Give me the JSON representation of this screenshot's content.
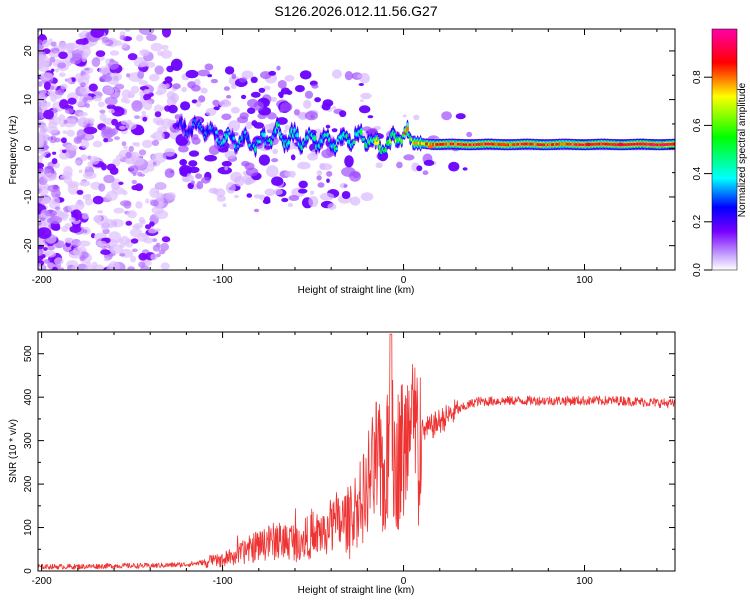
{
  "figure_title": "S126.2026.012.11.56.G27",
  "chart_data": [
    {
      "type": "heatmap",
      "title": "S126.2026.012.11.56.G27",
      "xlabel": "Height of straight line (km)",
      "ylabel": "Frequency (Hz)",
      "xlim": [
        -202,
        150
      ],
      "ylim": [
        -25,
        24.5
      ],
      "xticks": [
        -200,
        -100,
        0,
        100
      ],
      "yticks": [
        20,
        10,
        0,
        -10,
        -20
      ],
      "colorbar": {
        "label": "Normalized spectral amplitude",
        "range": [
          0,
          1
        ],
        "ticks": [
          0.0,
          0.2,
          0.4,
          0.6,
          0.8
        ],
        "colors": [
          "#ffffff",
          "#7700ff",
          "#0000ff",
          "#00ffff",
          "#00ff00",
          "#ffff00",
          "#ff0000",
          "#ff00aa"
        ]
      },
      "ridge": {
        "x": [
          -125,
          -110,
          -100,
          -90,
          -80,
          -70,
          -60,
          -50,
          -40,
          -30,
          -20,
          -15,
          -10,
          -5,
          0,
          5,
          10,
          20,
          40,
          60,
          80,
          100,
          120,
          150
        ],
        "freq": [
          4,
          4,
          2,
          2,
          1,
          3,
          2,
          2,
          1,
          2,
          2,
          1,
          0,
          2,
          3,
          1,
          1,
          0.8,
          0.8,
          0.8,
          0.8,
          0.8,
          0.8,
          0.8
        ],
        "amp": [
          0.2,
          0.25,
          0.3,
          0.3,
          0.32,
          0.35,
          0.35,
          0.33,
          0.35,
          0.35,
          0.4,
          0.45,
          0.5,
          0.45,
          0.5,
          0.55,
          0.6,
          0.65,
          0.65,
          0.65,
          0.65,
          0.68,
          0.7,
          0.7
        ]
      }
    },
    {
      "type": "line",
      "xlabel": "Height of straight line (km)",
      "ylabel": "SNR (10 * v/v)",
      "xlim": [
        -202,
        150
      ],
      "ylim": [
        0,
        550
      ],
      "xticks": [
        -200,
        -100,
        0,
        100
      ],
      "yticks": [
        0,
        100,
        200,
        300,
        400,
        500
      ],
      "color": "#ee3333",
      "series": [
        {
          "name": "SNR",
          "x": [
            -202,
            -180,
            -160,
            -140,
            -120,
            -110,
            -100,
            -90,
            -80,
            -70,
            -60,
            -50,
            -40,
            -30,
            -25,
            -20,
            -15,
            -10,
            -8,
            -7,
            -6,
            -5,
            0,
            5,
            10,
            15,
            20,
            30,
            40,
            60,
            80,
            100,
            120,
            150
          ],
          "y": [
            10,
            10,
            12,
            12,
            15,
            20,
            25,
            40,
            60,
            70,
            70,
            80,
            100,
            120,
            150,
            180,
            250,
            200,
            300,
            540,
            300,
            250,
            280,
            300,
            320,
            330,
            345,
            370,
            390,
            392,
            392,
            392,
            392,
            385
          ]
        }
      ]
    }
  ]
}
